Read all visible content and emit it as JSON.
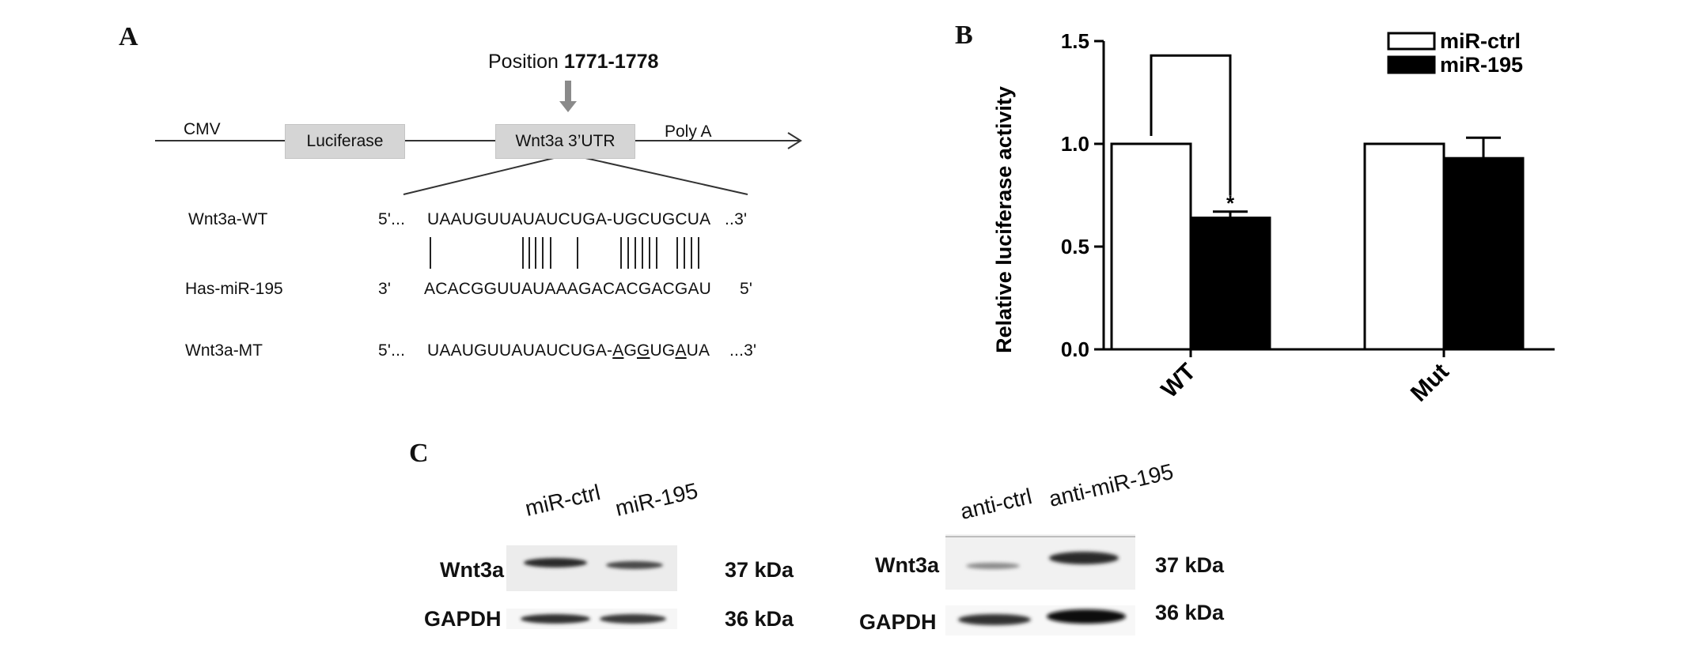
{
  "panels": {
    "a": "A",
    "b": "B",
    "c": "C"
  },
  "construct": {
    "position_label": "Position",
    "position_range": "1771-1778",
    "cmv": "CMV",
    "luciferase": "Luciferase",
    "utr": "Wnt3a 3’UTR",
    "polya": "Poly A"
  },
  "alignment": {
    "rows": [
      {
        "name": "Wnt3a-WT",
        "prefix": "5'...",
        "sequence": "UAAUGUUAUAUCUGA-UGCUGCUA",
        "suffix": "..3'"
      },
      {
        "name": "Has-miR-195",
        "prefix": "3'",
        "sequence": "ACACGGUUAUAAAGACACGACGAU",
        "suffix": "5'"
      },
      {
        "name": "Wnt3a-MT",
        "prefix": "5'...",
        "sequence_start": "UAAUGUUAUAUCUGA-",
        "sequence_mut1": "A",
        "sequence_mid1": "G",
        "sequence_mut2": "G",
        "sequence_mid2": "UG",
        "sequence_mut3": "A",
        "sequence_end": "UA",
        "suffix": "...3'"
      }
    ]
  },
  "chart_data": {
    "type": "bar",
    "categories": [
      "WT",
      "Mut"
    ],
    "series": [
      {
        "name": "miR-ctrl",
        "values": [
          1.0,
          1.0
        ],
        "errors": [
          0,
          0
        ],
        "fill": "#ffffff"
      },
      {
        "name": "miR-195",
        "values": [
          0.64,
          0.93
        ],
        "errors": [
          0.03,
          0.1
        ],
        "fill": "#000000"
      }
    ],
    "ylabel": "Relative luciferase activity",
    "xlabel": "",
    "ylim": [
      0,
      1.5
    ],
    "yticks": [
      "0.0",
      "0.5",
      "1.0",
      "1.5"
    ],
    "significance": "*",
    "legend_position": "top-right",
    "grid": false
  },
  "blots": {
    "left": {
      "lanes": [
        "miR-ctrl",
        "miR-195"
      ],
      "rows": [
        {
          "protein": "Wnt3a",
          "size": "37 kDa"
        },
        {
          "protein": "GAPDH",
          "size": "36 kDa"
        }
      ]
    },
    "right": {
      "lanes": [
        "anti-ctrl",
        "anti-miR-195"
      ],
      "rows": [
        {
          "protein": "Wnt3a",
          "size": "37 kDa"
        },
        {
          "protein": "GAPDH",
          "size": "36 kDa"
        }
      ]
    }
  }
}
